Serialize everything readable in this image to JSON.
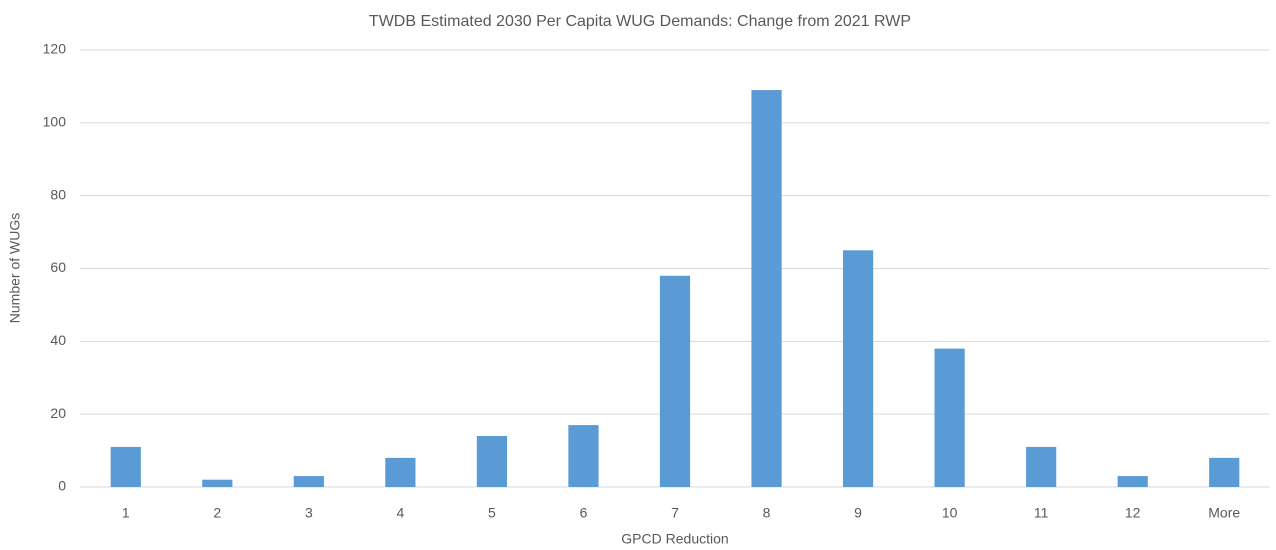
{
  "chart_data": {
    "type": "bar",
    "title": "TWDB Estimated 2030 Per Capita WUG Demands:  Change from 2021 RWP",
    "x_label": "GPCD Reduction",
    "y_label": "Number of WUGs",
    "categories": [
      "1",
      "2",
      "3",
      "4",
      "5",
      "6",
      "7",
      "8",
      "9",
      "10",
      "11",
      "12",
      "More"
    ],
    "values": [
      11,
      2,
      3,
      8,
      14,
      17,
      58,
      109,
      65,
      38,
      11,
      3,
      8
    ],
    "color": "#5b9bd5",
    "ylim": [
      0,
      120
    ],
    "yticks": [
      0,
      20,
      40,
      60,
      80,
      100,
      120
    ],
    "grid": true
  }
}
